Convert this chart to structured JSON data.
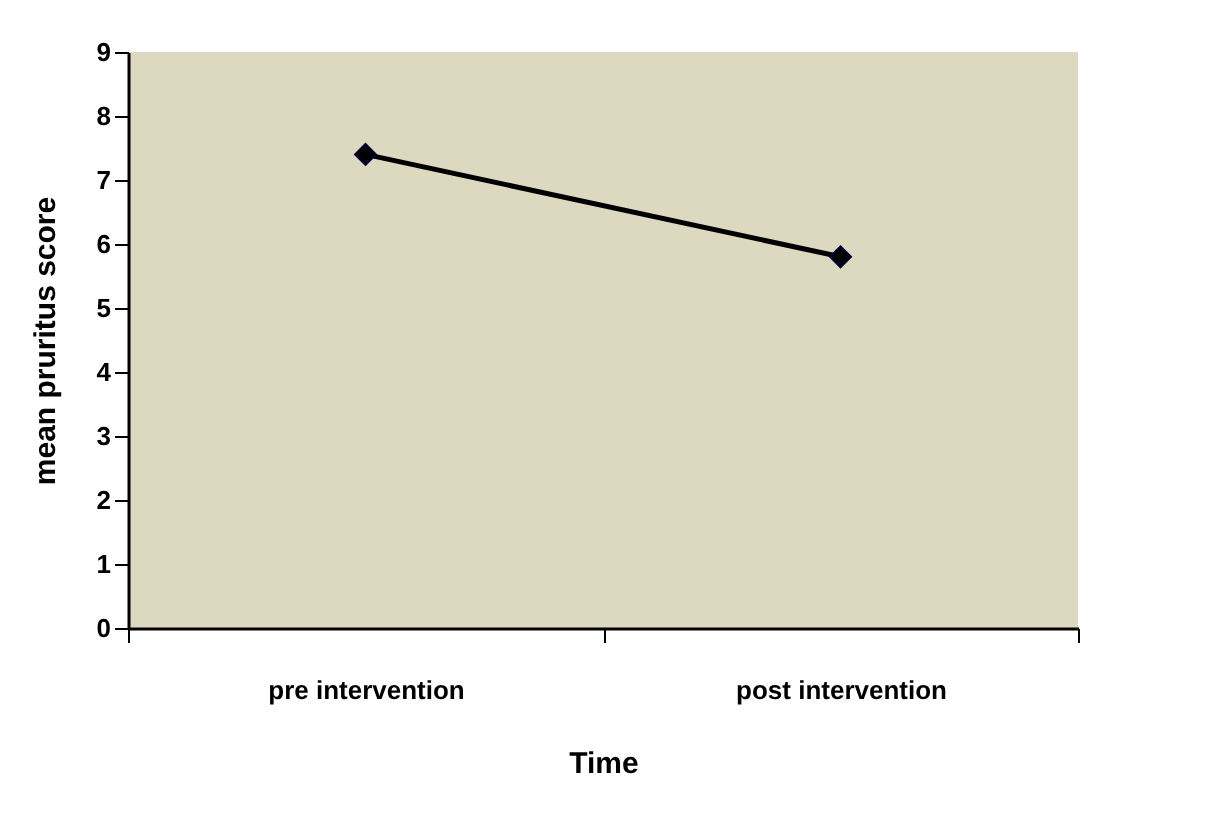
{
  "chart_data": {
    "type": "line",
    "xlabel": "Time",
    "ylabel": "mean pruritus score",
    "categories": [
      "pre intervention",
      "post intervention"
    ],
    "series": [
      {
        "color": "#000000",
        "values": [
          7.4,
          5.8
        ]
      }
    ],
    "ylim": [
      0,
      9
    ],
    "yticks": [
      0,
      1,
      2,
      3,
      4,
      5,
      6,
      7,
      8,
      9
    ],
    "grid": false,
    "legend": false,
    "marker": "diamond",
    "line_style": "solid"
  }
}
